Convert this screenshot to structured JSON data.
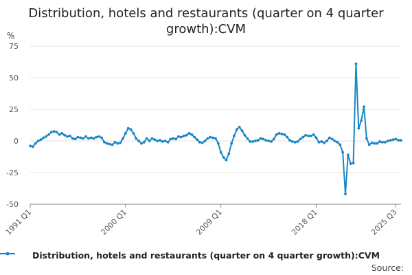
{
  "chart_data": {
    "type": "line",
    "title": "Distribution, hotels and restaurants (quarter on 4 quarter growth):CVM",
    "ylabel": "%",
    "xlabel": "",
    "ylim": [
      -50,
      75
    ],
    "yticks": [
      -50,
      -25,
      0,
      25,
      50,
      75
    ],
    "xtick_labels": [
      "1991 Q1",
      "2000 Q1",
      "2009 Q1",
      "2018 Q1",
      "2025 Q3"
    ],
    "xtick_indices": [
      0,
      36,
      72,
      108,
      138
    ],
    "grid": "horizontal",
    "legend_position": "bottom",
    "series": [
      {
        "name": "Distribution, hotels and restaurants (quarter on 4 quarter growth):CVM",
        "color": "#1a85c4",
        "x_start": "1991 Q1",
        "frequency": "quarterly",
        "values": [
          -4,
          -4.5,
          -2,
          0,
          1,
          2.5,
          3.5,
          5,
          7,
          7.5,
          7,
          5,
          6,
          4.5,
          3.5,
          4,
          2,
          1.5,
          3,
          2.5,
          2,
          3.5,
          2,
          2.5,
          2,
          3,
          3.5,
          2.5,
          -1,
          -2,
          -2.5,
          -3,
          -1,
          -2,
          -1.5,
          2,
          6,
          10,
          9,
          6,
          2,
          0,
          -2,
          -1,
          2,
          0,
          2,
          1,
          0,
          0.5,
          -0.5,
          0,
          -1,
          1.5,
          2,
          1.5,
          3.5,
          3,
          4,
          4.5,
          6,
          5,
          3,
          1,
          -1,
          -1.5,
          0,
          2,
          3,
          2.5,
          2,
          -2,
          -9,
          -13,
          -15,
          -10,
          -2,
          4,
          9,
          11,
          8,
          4.5,
          2,
          -0.5,
          -0.5,
          0,
          0.5,
          2,
          1.5,
          0.5,
          0,
          -0.5,
          1.5,
          5,
          6,
          5.5,
          5,
          3,
          0.5,
          -0.5,
          -1,
          -0.5,
          1.5,
          3,
          4.5,
          4,
          4,
          5,
          2.5,
          -1,
          -0.5,
          -1.5,
          0,
          2.5,
          1.5,
          0,
          -1,
          -3,
          -9,
          -42,
          -11,
          -18,
          -17.5,
          61,
          10,
          16,
          27,
          2,
          -3,
          -1.5,
          -2,
          -2,
          -0.5,
          -1,
          -1,
          0,
          0.5,
          1,
          1.5,
          0.5,
          0.5
        ]
      }
    ]
  },
  "legend": {
    "label": "Distribution, hotels and restaurants (quarter on 4 quarter growth):CVM"
  },
  "source": {
    "label": "Source:"
  }
}
